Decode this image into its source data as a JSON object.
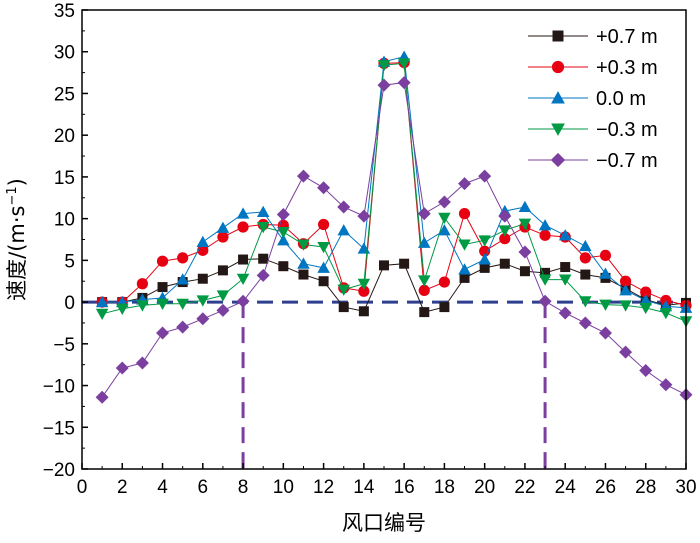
{
  "chart_data": {
    "type": "line",
    "title": "",
    "xlabel": "风口编号",
    "ylabel_prefix": "速度/(m·s",
    "ylabel_sup": "−1",
    "ylabel_suffix": ")",
    "xlim": [
      0,
      30
    ],
    "ylim": [
      -20,
      35
    ],
    "xticks": [
      0,
      2,
      4,
      6,
      8,
      10,
      12,
      14,
      16,
      18,
      20,
      22,
      24,
      26,
      28,
      30
    ],
    "yticks": [
      -20,
      -15,
      -10,
      -5,
      0,
      5,
      10,
      15,
      20,
      25,
      30,
      35
    ],
    "grid": false,
    "legend_position": "top-right",
    "x": [
      1,
      2,
      3,
      4,
      5,
      6,
      7,
      8,
      9,
      10,
      11,
      12,
      13,
      14,
      15,
      16,
      17,
      18,
      19,
      20,
      21,
      22,
      23,
      24,
      25,
      26,
      27,
      28,
      29,
      30
    ],
    "reference_lines": [
      {
        "orientation": "horizontal",
        "value": 0,
        "color": "#2e3f8f"
      },
      {
        "orientation": "vertical",
        "value": 8,
        "color": "#7b3fa0"
      },
      {
        "orientation": "vertical",
        "value": 23,
        "color": "#7b3fa0"
      }
    ],
    "series": [
      {
        "name": "+0.7 m",
        "color": "#231815",
        "marker": "square",
        "values": [
          0,
          0,
          0.5,
          1.8,
          2.4,
          2.8,
          3.8,
          5.1,
          5.2,
          4.3,
          3.3,
          2.5,
          -0.6,
          -1.1,
          4.4,
          4.6,
          -1.2,
          -0.6,
          2.9,
          4.1,
          4.6,
          3.7,
          3.5,
          4.2,
          3.3,
          2.9,
          1.6,
          0.3,
          -0.4,
          -0.1
        ]
      },
      {
        "name": "+0.3 m",
        "color": "#e60012",
        "marker": "circle",
        "values": [
          0,
          0,
          2.2,
          4.9,
          5.3,
          6.2,
          7.8,
          9.0,
          9.3,
          9.2,
          7.0,
          9.3,
          1.7,
          1.3,
          28.6,
          28.7,
          1.4,
          2.4,
          10.6,
          6.1,
          7.6,
          9.0,
          8.0,
          7.8,
          5.3,
          5.6,
          2.5,
          1.2,
          0.2,
          -0.4
        ]
      },
      {
        "name": "0.0 m",
        "color": "#0075c2",
        "marker": "triangle-up",
        "values": [
          0,
          0,
          0.3,
          0.5,
          2.7,
          7.2,
          8.9,
          10.6,
          10.8,
          7.4,
          4.6,
          4.1,
          8.6,
          6.4,
          28.8,
          29.4,
          7.1,
          8.6,
          3.9,
          5.1,
          10.9,
          11.4,
          9.2,
          8.0,
          6.7,
          3.4,
          1.4,
          0.2,
          -0.5,
          -0.7
        ]
      },
      {
        "name": "−0.3 m",
        "color": "#009944",
        "marker": "triangle-down",
        "values": [
          -1.4,
          -0.8,
          -0.4,
          -0.2,
          -0.2,
          0.2,
          0.8,
          2.8,
          9.0,
          8.4,
          6.9,
          6.6,
          1.5,
          2.2,
          28.4,
          28.6,
          2.6,
          10.1,
          6.9,
          7.4,
          8.6,
          9.4,
          2.7,
          2.7,
          0.1,
          -0.3,
          -0.4,
          -0.7,
          -1.3,
          -2.3
        ]
      },
      {
        "name": "−0.7 m",
        "color": "#7b3fa0",
        "marker": "diamond",
        "values": [
          -11.4,
          -7.9,
          -7.3,
          -3.7,
          -3.0,
          -2.0,
          -1.0,
          0.1,
          3.2,
          10.5,
          15.1,
          13.7,
          11.4,
          10.3,
          26.0,
          26.3,
          10.6,
          12.0,
          14.2,
          15.1,
          10.3,
          6.0,
          0.1,
          -1.3,
          -2.5,
          -3.7,
          -6.0,
          -8.2,
          -9.9,
          -11.1
        ]
      }
    ]
  }
}
